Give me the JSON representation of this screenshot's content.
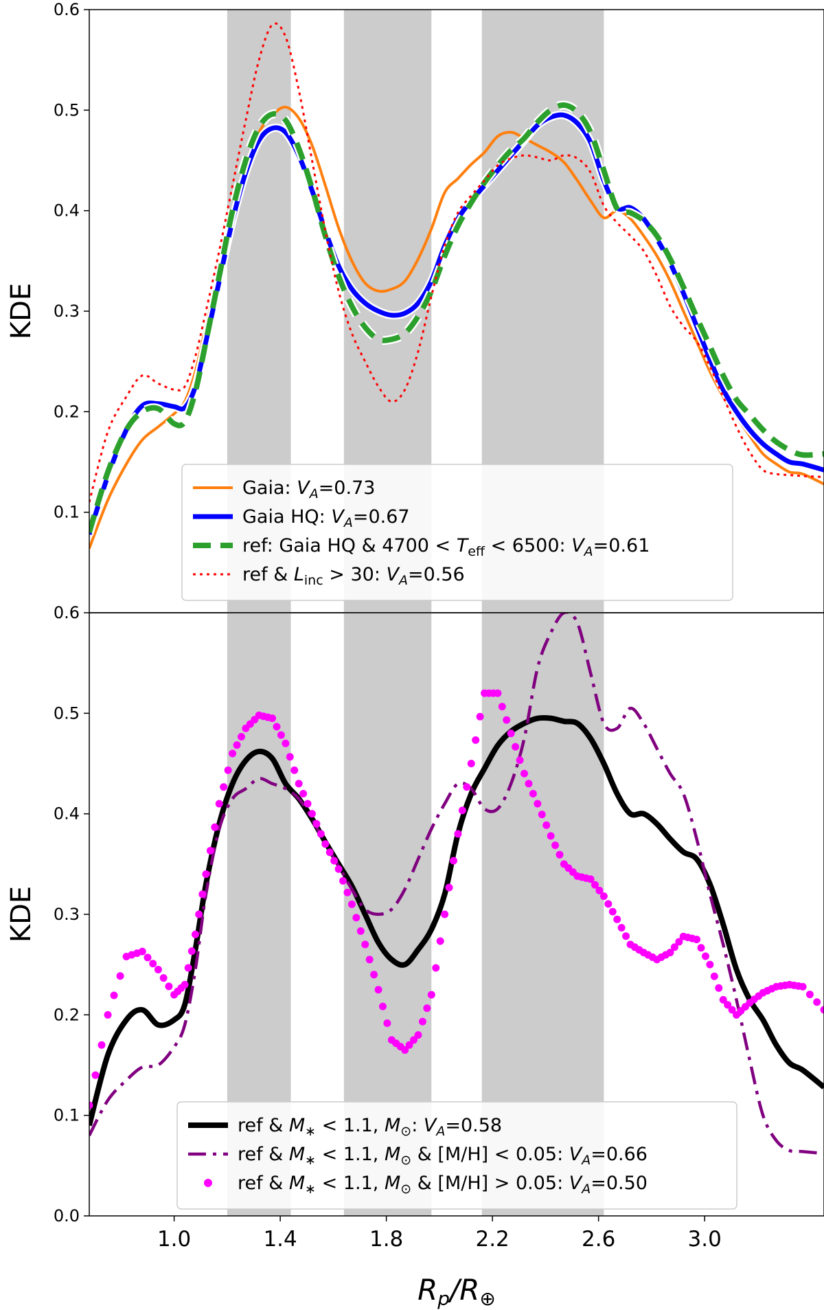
{
  "colors": {
    "band": "#cccccc",
    "gaia": "#ff7f0e",
    "gaia_hq": "#0000ff",
    "ref": "#2ca02c",
    "ref_linc": "#ff0000",
    "m_lt": "#000000",
    "m_lt_mh_low": "#800080",
    "m_lt_mh_high": "#ff00ff"
  },
  "chart_data": [
    {
      "type": "line",
      "panel": "top",
      "ylabel": "KDE",
      "xlabel": "",
      "xlim": [
        0.68,
        3.45
      ],
      "ylim": [
        0.0,
        0.6
      ],
      "yticks": [
        "0.1",
        "0.2",
        "0.3",
        "0.4",
        "0.5",
        "0.6"
      ],
      "ytick_values": [
        0.1,
        0.2,
        0.3,
        0.4,
        0.5,
        0.6
      ],
      "shaded_bands": [
        [
          1.2,
          1.44
        ],
        [
          1.64,
          1.97
        ],
        [
          2.16,
          2.62
        ]
      ],
      "legend_position": "bottom-center",
      "x": [
        0.68,
        0.75,
        0.82,
        0.88,
        0.94,
        1.0,
        1.04,
        1.08,
        1.12,
        1.17,
        1.22,
        1.27,
        1.32,
        1.37,
        1.42,
        1.47,
        1.52,
        1.57,
        1.62,
        1.67,
        1.72,
        1.77,
        1.82,
        1.87,
        1.92,
        1.97,
        2.02,
        2.07,
        2.12,
        2.17,
        2.22,
        2.27,
        2.32,
        2.37,
        2.42,
        2.47,
        2.52,
        2.57,
        2.62,
        2.67,
        2.72,
        2.77,
        2.82,
        2.87,
        2.92,
        2.97,
        3.02,
        3.07,
        3.12,
        3.17,
        3.22,
        3.27,
        3.32,
        3.37,
        3.45
      ],
      "series": [
        {
          "key": "gaia",
          "name": "Gaia",
          "legend_va": "0.73",
          "style": "solid",
          "values": [
            0.064,
            0.112,
            0.148,
            0.172,
            0.185,
            0.198,
            0.21,
            0.24,
            0.285,
            0.34,
            0.4,
            0.445,
            0.478,
            0.495,
            0.503,
            0.492,
            0.465,
            0.425,
            0.383,
            0.35,
            0.328,
            0.32,
            0.322,
            0.33,
            0.352,
            0.382,
            0.418,
            0.432,
            0.446,
            0.458,
            0.474,
            0.478,
            0.472,
            0.465,
            0.458,
            0.448,
            0.43,
            0.41,
            0.393,
            0.4,
            0.392,
            0.375,
            0.355,
            0.33,
            0.3,
            0.27,
            0.24,
            0.215,
            0.195,
            0.176,
            0.158,
            0.148,
            0.14,
            0.138,
            0.128
          ]
        },
        {
          "key": "gaia_hq",
          "name": "Gaia HQ",
          "legend_va": "0.67",
          "style": "solid",
          "values": [
            0.078,
            0.136,
            0.182,
            0.206,
            0.208,
            0.205,
            0.204,
            0.225,
            0.27,
            0.33,
            0.39,
            0.438,
            0.47,
            0.482,
            0.478,
            0.455,
            0.42,
            0.38,
            0.345,
            0.322,
            0.308,
            0.3,
            0.296,
            0.298,
            0.308,
            0.33,
            0.365,
            0.392,
            0.41,
            0.425,
            0.44,
            0.455,
            0.47,
            0.485,
            0.493,
            0.495,
            0.487,
            0.468,
            0.43,
            0.403,
            0.403,
            0.392,
            0.372,
            0.348,
            0.318,
            0.285,
            0.252,
            0.222,
            0.2,
            0.182,
            0.168,
            0.158,
            0.15,
            0.148,
            0.142
          ]
        },
        {
          "key": "ref",
          "name": "ref: Gaia HQ & 4700 < T_eff < 6500",
          "legend_va": "0.61",
          "style": "dashed",
          "values": [
            0.08,
            0.14,
            0.182,
            0.2,
            0.203,
            0.188,
            0.19,
            0.22,
            0.27,
            0.335,
            0.4,
            0.45,
            0.483,
            0.496,
            0.49,
            0.462,
            0.422,
            0.375,
            0.335,
            0.305,
            0.284,
            0.272,
            0.272,
            0.278,
            0.295,
            0.32,
            0.355,
            0.385,
            0.408,
            0.428,
            0.445,
            0.46,
            0.472,
            0.488,
            0.5,
            0.505,
            0.498,
            0.478,
            0.44,
            0.402,
            0.398,
            0.39,
            0.375,
            0.352,
            0.324,
            0.294,
            0.265,
            0.236,
            0.212,
            0.197,
            0.182,
            0.17,
            0.162,
            0.157,
            0.158
          ]
        },
        {
          "key": "ref_linc",
          "name": "ref & L_inc > 30",
          "legend_va": "0.56",
          "style": "dotted",
          "values": [
            0.11,
            0.18,
            0.215,
            0.236,
            0.228,
            0.222,
            0.225,
            0.255,
            0.3,
            0.36,
            0.425,
            0.49,
            0.55,
            0.585,
            0.573,
            0.52,
            0.45,
            0.38,
            0.32,
            0.278,
            0.25,
            0.225,
            0.21,
            0.222,
            0.26,
            0.315,
            0.365,
            0.398,
            0.415,
            0.43,
            0.445,
            0.452,
            0.455,
            0.453,
            0.45,
            0.455,
            0.452,
            0.438,
            0.405,
            0.388,
            0.375,
            0.36,
            0.335,
            0.305,
            0.285,
            0.27,
            0.245,
            0.215,
            0.185,
            0.16,
            0.142,
            0.138,
            0.137,
            0.136,
            0.135
          ]
        }
      ]
    },
    {
      "type": "line",
      "panel": "bottom",
      "ylabel": "KDE",
      "xlabel": "R_p/R_⊕",
      "xlim": [
        0.68,
        3.45
      ],
      "ylim": [
        0.0,
        0.6
      ],
      "yticks": [
        "0.0",
        "0.1",
        "0.2",
        "0.3",
        "0.4",
        "0.5",
        "0.6"
      ],
      "ytick_values": [
        0.0,
        0.1,
        0.2,
        0.3,
        0.4,
        0.5,
        0.6
      ],
      "xticks": [
        "1.0",
        "1.4",
        "1.8",
        "2.2",
        "2.6",
        "3.0"
      ],
      "xtick_values": [
        1.0,
        1.4,
        1.8,
        2.2,
        2.6,
        3.0
      ],
      "shaded_bands": [
        [
          1.2,
          1.44
        ],
        [
          1.64,
          1.97
        ],
        [
          2.16,
          2.62
        ]
      ],
      "legend_position": "bottom-center",
      "x": [
        0.68,
        0.75,
        0.82,
        0.88,
        0.94,
        1.0,
        1.04,
        1.08,
        1.12,
        1.17,
        1.22,
        1.27,
        1.32,
        1.37,
        1.42,
        1.47,
        1.52,
        1.57,
        1.62,
        1.67,
        1.72,
        1.77,
        1.82,
        1.87,
        1.92,
        1.97,
        2.02,
        2.07,
        2.12,
        2.17,
        2.22,
        2.27,
        2.32,
        2.37,
        2.42,
        2.47,
        2.52,
        2.57,
        2.62,
        2.67,
        2.72,
        2.77,
        2.82,
        2.87,
        2.92,
        2.97,
        3.02,
        3.07,
        3.12,
        3.17,
        3.22,
        3.27,
        3.32,
        3.37,
        3.45
      ],
      "series": [
        {
          "key": "m_lt",
          "name": "ref & M_* < 1.1, M_⊙",
          "legend_va": "0.58",
          "style": "solid",
          "values": [
            0.09,
            0.16,
            0.195,
            0.205,
            0.19,
            0.195,
            0.21,
            0.265,
            0.33,
            0.39,
            0.43,
            0.453,
            0.462,
            0.455,
            0.43,
            0.415,
            0.395,
            0.372,
            0.35,
            0.328,
            0.3,
            0.272,
            0.255,
            0.25,
            0.265,
            0.285,
            0.32,
            0.38,
            0.42,
            0.445,
            0.468,
            0.482,
            0.49,
            0.495,
            0.495,
            0.492,
            0.49,
            0.475,
            0.45,
            0.42,
            0.4,
            0.4,
            0.39,
            0.375,
            0.362,
            0.355,
            0.33,
            0.29,
            0.245,
            0.215,
            0.195,
            0.17,
            0.152,
            0.145,
            0.128
          ]
        },
        {
          "key": "m_lt_mh_low",
          "name": "ref & M_* < 1.1, M_⊙ & [M/H] < 0.05",
          "legend_va": "0.66",
          "style": "dashdot",
          "values": [
            0.08,
            0.115,
            0.135,
            0.148,
            0.15,
            0.168,
            0.19,
            0.245,
            0.32,
            0.385,
            0.415,
            0.425,
            0.435,
            0.43,
            0.425,
            0.415,
            0.395,
            0.37,
            0.348,
            0.325,
            0.305,
            0.3,
            0.305,
            0.325,
            0.355,
            0.385,
            0.41,
            0.43,
            0.425,
            0.405,
            0.405,
            0.43,
            0.475,
            0.545,
            0.58,
            0.6,
            0.59,
            0.54,
            0.49,
            0.485,
            0.505,
            0.49,
            0.465,
            0.44,
            0.42,
            0.375,
            0.32,
            0.27,
            0.215,
            0.155,
            0.1,
            0.075,
            0.065,
            0.064,
            0.062
          ]
        },
        {
          "key": "m_lt_mh_high",
          "name": "ref & M_* < 1.1, M_⊙ & [M/H] > 0.05",
          "legend_va": "0.50",
          "style": "dots",
          "values": [
            0.11,
            0.2,
            0.258,
            0.263,
            0.245,
            0.22,
            0.23,
            0.28,
            0.34,
            0.41,
            0.46,
            0.485,
            0.498,
            0.495,
            0.47,
            0.43,
            0.4,
            0.37,
            0.345,
            0.31,
            0.27,
            0.225,
            0.175,
            0.165,
            0.18,
            0.22,
            0.3,
            0.38,
            0.45,
            0.52,
            0.52,
            0.48,
            0.44,
            0.41,
            0.378,
            0.35,
            0.338,
            0.335,
            0.318,
            0.295,
            0.27,
            0.262,
            0.255,
            0.262,
            0.278,
            0.275,
            0.25,
            0.215,
            0.2,
            0.212,
            0.222,
            0.228,
            0.23,
            0.228,
            0.205
          ]
        }
      ]
    }
  ],
  "legend": {
    "top": [
      {
        "series": "gaia",
        "label": "Gaia: ",
        "va_var": "V",
        "va_sub": "A",
        "va_value": "=0.73"
      },
      {
        "series": "gaia_hq",
        "label": "Gaia HQ: ",
        "va_var": "V",
        "va_sub": "A",
        "va_value": "=0.67"
      },
      {
        "series": "ref",
        "label": "ref: Gaia HQ & 4700 < ",
        "cond_var": "T",
        "cond_sub": "eff",
        "cond_rest": " < 6500: ",
        "va_var": "V",
        "va_sub": "A",
        "va_value": "=0.61"
      },
      {
        "series": "ref_linc",
        "label": "ref & ",
        "cond_var": "L",
        "cond_sub": "inc",
        "cond_rest": " > 30: ",
        "va_var": "V",
        "va_sub": "A",
        "va_value": "=0.56"
      }
    ],
    "bottom": [
      {
        "series": "m_lt",
        "label": "ref & ",
        "cond_var": "M",
        "cond_sub": "∗",
        "cond_rest": " < 1.1, ",
        "cond2_var": "M",
        "cond2_sub": "⊙",
        "cond2_rest": ": ",
        "va_var": "V",
        "va_sub": "A",
        "va_value": "=0.58"
      },
      {
        "series": "m_lt_mh_low",
        "label": "ref & ",
        "cond_var": "M",
        "cond_sub": "∗",
        "cond_rest": " < 1.1, ",
        "cond2_var": "M",
        "cond2_sub": "⊙",
        "cond2_rest": " & [M/H] < 0.05: ",
        "va_var": "V",
        "va_sub": "A",
        "va_value": "=0.66"
      },
      {
        "series": "m_lt_mh_high",
        "label": "ref & ",
        "cond_var": "M",
        "cond_sub": "∗",
        "cond_rest": " < 1.1, ",
        "cond2_var": "M",
        "cond2_sub": "⊙",
        "cond2_rest": " & [M/H] > 0.05: ",
        "va_var": "V",
        "va_sub": "A",
        "va_value": "=0.50"
      }
    ]
  },
  "axis_labels": {
    "top_y": "KDE",
    "bottom_y": "KDE",
    "x_var": "R",
    "x_sub": "p",
    "x_slash": "/",
    "x_var2": "R",
    "x_sub2": "⊕"
  }
}
